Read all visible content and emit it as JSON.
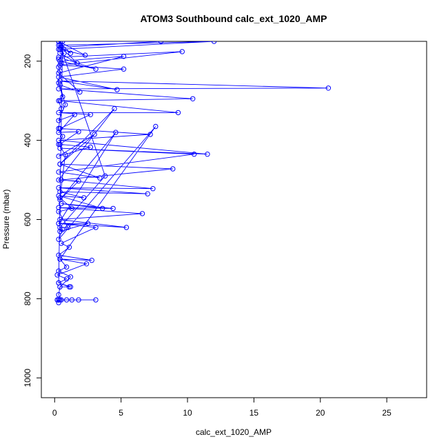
{
  "chart_data": {
    "type": "line",
    "title": "ATOM3 Southbound calc_ext_1020_AMP",
    "xlabel": "calc_ext_1020_AMP",
    "ylabel": "Pressure (mbar)",
    "xlim": [
      -1,
      28
    ],
    "ylim": [
      1050,
      150
    ],
    "y_inverted": true,
    "x_ticks": [
      0,
      5,
      10,
      15,
      20,
      25
    ],
    "y_ticks": [
      200,
      400,
      600,
      800,
      1000
    ],
    "line_color": "#0000ff",
    "marker": "open-circle",
    "grid": false,
    "series": [
      {
        "values": [
          [
            0.3,
            810
          ],
          [
            0.2,
            803
          ],
          [
            3.1,
            803
          ],
          [
            0.4,
            803
          ],
          [
            1.8,
            803
          ],
          [
            0.3,
            803
          ],
          [
            1.3,
            803
          ],
          [
            0.3,
            803
          ],
          [
            0.9,
            803
          ],
          [
            0.2,
            803
          ],
          [
            0.5,
            803
          ],
          [
            0.3,
            790
          ],
          [
            0.4,
            770
          ],
          [
            1.2,
            770
          ],
          [
            0.3,
            760
          ],
          [
            0.9,
            750
          ],
          [
            0.2,
            740
          ],
          [
            2.4,
            712
          ],
          [
            0.4,
            700
          ],
          [
            2.8,
            703
          ],
          [
            0.3,
            690
          ],
          [
            1.1,
            670
          ],
          [
            0.5,
            660
          ],
          [
            3.1,
            620
          ],
          [
            0.3,
            610
          ],
          [
            5.4,
            620
          ],
          [
            0.4,
            600
          ],
          [
            6.6,
            585
          ],
          [
            0.3,
            570
          ],
          [
            4.4,
            572
          ],
          [
            0.5,
            560
          ],
          [
            3.6,
            572
          ],
          [
            0.3,
            540
          ],
          [
            2.2,
            545
          ],
          [
            0.4,
            530
          ],
          [
            7.0,
            535
          ],
          [
            0.3,
            520
          ],
          [
            7.4,
            522
          ],
          [
            0.5,
            500
          ],
          [
            8.9,
            472
          ],
          [
            0.4,
            460
          ],
          [
            3.4,
            495
          ],
          [
            0.3,
            480
          ],
          [
            10.5,
            435
          ],
          [
            0.4,
            420
          ],
          [
            11.5,
            435
          ],
          [
            0.3,
            400
          ],
          [
            7.2,
            385
          ],
          [
            0.4,
            370
          ],
          [
            2.7,
            335
          ],
          [
            0.3,
            330
          ],
          [
            9.3,
            330
          ],
          [
            0.4,
            300
          ],
          [
            10.4,
            295
          ],
          [
            0.3,
            270
          ],
          [
            20.6,
            268
          ],
          [
            0.4,
            250
          ],
          [
            4.7,
            272
          ],
          [
            0.3,
            240
          ],
          [
            5.2,
            220
          ],
          [
            0.4,
            210
          ],
          [
            9.6,
            176
          ],
          [
            0.3,
            190
          ],
          [
            3.1,
            220
          ],
          [
            0.4,
            200
          ],
          [
            5.2,
            188
          ],
          [
            0.3,
            230
          ],
          [
            1.9,
            278
          ],
          [
            0.4,
            260
          ],
          [
            0.8,
            310
          ],
          [
            0.3,
            350
          ],
          [
            1.5,
            335
          ],
          [
            0.3,
            380
          ],
          [
            1.8,
            378
          ],
          [
            0.4,
            410
          ],
          [
            2.7,
            417
          ],
          [
            0.3,
            440
          ],
          [
            3.0,
            385
          ],
          [
            0.4,
            460
          ],
          [
            4.5,
            320
          ],
          [
            0.3,
            500
          ],
          [
            1.8,
            503
          ],
          [
            0.4,
            550
          ],
          [
            4.6,
            380
          ],
          [
            0.3,
            610
          ],
          [
            2.5,
            610
          ],
          [
            0.4,
            630
          ],
          [
            0.6,
            625
          ],
          [
            0.3,
            650
          ],
          [
            7.6,
            365
          ],
          [
            0.4,
            700
          ],
          [
            0.9,
            720
          ],
          [
            0.3,
            730
          ],
          [
            1.2,
            745
          ],
          [
            0.4,
            770
          ],
          [
            1.1,
            770
          ],
          [
            0.3,
            760
          ],
          [
            0.6,
            150
          ],
          [
            0.4,
            180
          ],
          [
            1.7,
            205
          ],
          [
            0.3,
            160
          ],
          [
            12.0,
            150
          ],
          [
            0.4,
            170
          ],
          [
            2.3,
            185
          ],
          [
            0.3,
            150
          ],
          [
            8.0,
            150
          ],
          [
            0.5,
            165
          ],
          [
            1.2,
            180
          ],
          [
            0.3,
            150
          ],
          [
            3.8,
            490
          ],
          [
            0.4,
            620
          ],
          [
            1.0,
            620
          ],
          [
            0.3,
            580
          ],
          [
            1.3,
            572
          ],
          [
            0.4,
            545
          ],
          [
            0.8,
            436
          ],
          [
            0.3,
            410
          ],
          [
            0.6,
            390
          ],
          [
            0.3,
            370
          ],
          [
            0.5,
            320
          ],
          [
            0.3,
            300
          ],
          [
            0.6,
            290
          ],
          [
            0.3,
            255
          ],
          [
            0.4,
            225
          ],
          [
            0.3,
            215
          ],
          [
            0.5,
            205
          ],
          [
            0.3,
            195
          ],
          [
            0.7,
            180
          ],
          [
            0.3,
            170
          ],
          [
            0.4,
            160
          ],
          [
            0.3,
            150
          ]
        ]
      }
    ]
  }
}
